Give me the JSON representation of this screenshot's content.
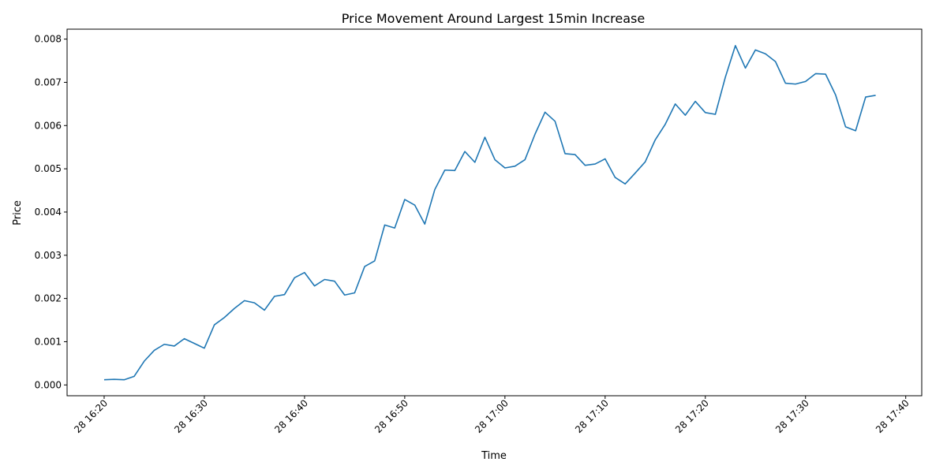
{
  "chart_data": {
    "type": "line",
    "title": "Price Movement Around Largest 15min Increase",
    "xlabel": "Time",
    "ylabel": "Price",
    "x_tick_labels": [
      "28 16:20",
      "28 16:30",
      "28 16:40",
      "28 16:50",
      "28 17:00",
      "28 17:10",
      "28 17:20",
      "28 17:30",
      "28 17:40"
    ],
    "x_tick_minutes": [
      0,
      10,
      20,
      30,
      40,
      50,
      60,
      70,
      80
    ],
    "y_tick_labels": [
      "0.000",
      "0.001",
      "0.002",
      "0.003",
      "0.004",
      "0.005",
      "0.006",
      "0.007",
      "0.008"
    ],
    "y_tick_values": [
      0,
      0.001,
      0.002,
      0.003,
      0.004,
      0.005,
      0.006,
      0.007,
      0.008
    ],
    "xlim_minutes": [
      -3.7,
      81.6
    ],
    "ylim": [
      -0.00025,
      0.00823
    ],
    "grid": false,
    "legend": "none",
    "series": [
      {
        "color": "#1f77b4",
        "x_start": "28 16:20",
        "x_step_minutes": 1,
        "values": [
          0.00012,
          0.00013,
          0.00012,
          0.0002,
          0.00055,
          0.0008,
          0.00094,
          0.0009,
          0.00107,
          0.00096,
          0.00085,
          0.00139,
          0.00156,
          0.00177,
          0.00195,
          0.0019,
          0.00173,
          0.00205,
          0.00209,
          0.00248,
          0.0026,
          0.00229,
          0.00244,
          0.0024,
          0.00208,
          0.00213,
          0.00274,
          0.00287,
          0.0037,
          0.00363,
          0.00429,
          0.00416,
          0.00372,
          0.00452,
          0.00497,
          0.00496,
          0.0054,
          0.00515,
          0.00573,
          0.00521,
          0.00502,
          0.00506,
          0.00521,
          0.0058,
          0.00631,
          0.0061,
          0.00535,
          0.00533,
          0.00508,
          0.00511,
          0.00523,
          0.0048,
          0.00465,
          0.0049,
          0.00516,
          0.00567,
          0.00603,
          0.0065,
          0.00624,
          0.00656,
          0.0063,
          0.00626,
          0.00712,
          0.00785,
          0.00733,
          0.00775,
          0.00766,
          0.00748,
          0.00698,
          0.00696,
          0.00702,
          0.0072,
          0.00719,
          0.00671,
          0.00597,
          0.00588,
          0.00666,
          0.0067
        ]
      }
    ]
  }
}
